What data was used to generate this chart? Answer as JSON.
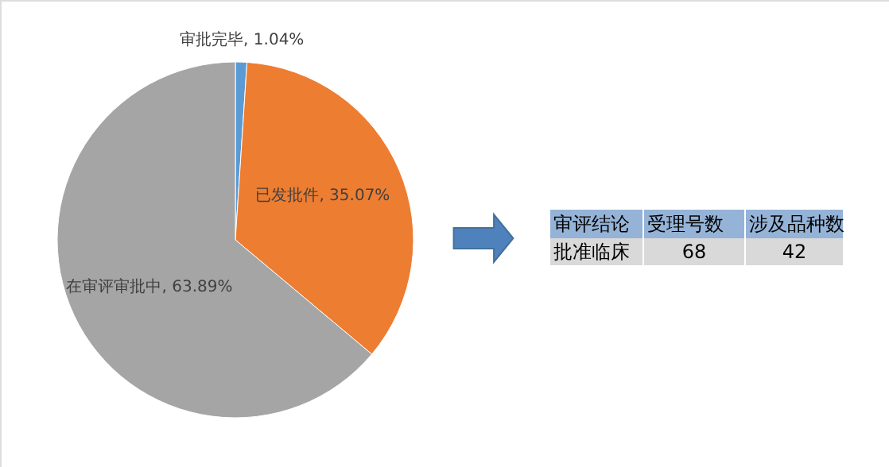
{
  "chart_data": {
    "type": "pie",
    "categories": [
      "审批完毕",
      "已发批件",
      "在审评审批中"
    ],
    "values": [
      1.04,
      35.07,
      63.89
    ],
    "colors": [
      "#5b9bd5",
      "#ed7d31",
      "#a5a5a5"
    ],
    "value_labels": [
      "1.04%",
      "35.07%",
      "63.89%"
    ],
    "legend": false,
    "annotations": [
      "审评结论",
      "受理号数",
      "涉及品种数",
      "批准临床",
      "68",
      "42"
    ]
  }
}
